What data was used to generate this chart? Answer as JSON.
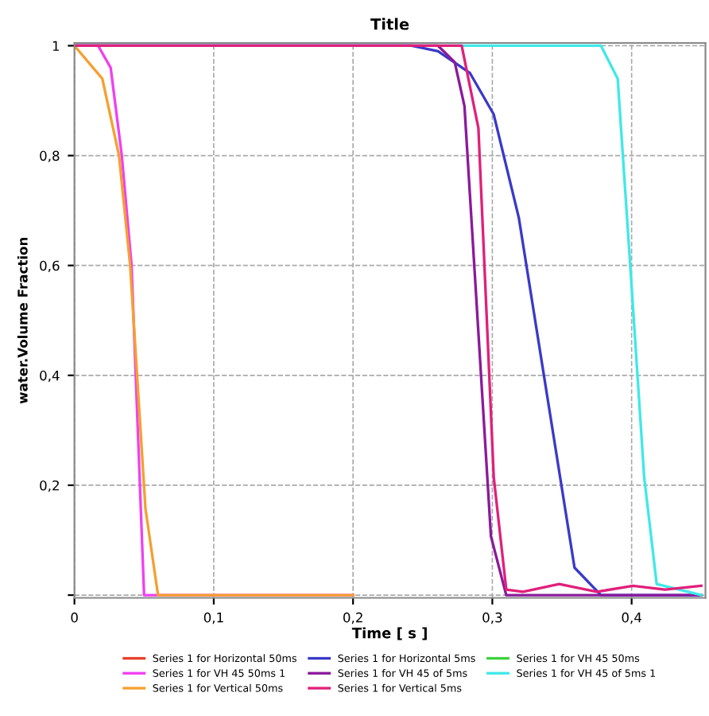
{
  "chart_data": {
    "type": "line",
    "title": "Title",
    "xlabel": "Time [ s ]",
    "ylabel": "water.Volume Fraction",
    "xlim": [
      0,
      0.453
    ],
    "ylim": [
      -0.005,
      1.005
    ],
    "xticks": [
      0,
      {
        "value": 0.1,
        "label": "0,1"
      },
      {
        "value": 0.2,
        "label": "0,2"
      },
      {
        "value": 0.3,
        "label": "0,3"
      },
      {
        "value": 0.4,
        "label": "0,4"
      }
    ],
    "yticks": [
      {
        "value": 0,
        "label": null
      },
      {
        "value": 0.2,
        "label": "0,2"
      },
      {
        "value": 0.4,
        "label": "0,4"
      },
      {
        "value": 0.6,
        "label": "0,6"
      },
      {
        "value": 0.8,
        "label": "0,8"
      },
      1
    ],
    "grid": true,
    "legend": "bottom",
    "marker": "none",
    "line_style": "solid",
    "series": [
      {
        "name": "Series 1 for Horizontal 50ms",
        "color": "#e8402a"
      },
      {
        "name": "Series 1 for Horizontal 5ms",
        "color": "#3a3ac8",
        "x": [
          0,
          0.242,
          0.261,
          0.284,
          0.301,
          0.319,
          0.359,
          0.378,
          0.45
        ],
        "values": [
          1,
          1,
          0.99,
          0.95,
          0.875,
          0.687,
          0.05,
          0,
          0
        ]
      },
      {
        "name": "Series 1 for VH 45 50ms",
        "color": "#3dd13d"
      },
      {
        "name": "Series 1 for VH 45 50ms 1",
        "color": "#f040f0",
        "x": [
          0,
          0.017,
          0.026,
          0.034,
          0.041,
          0.05,
          0.2
        ],
        "values": [
          1,
          1,
          0.96,
          0.8,
          0.6,
          0,
          0
        ]
      },
      {
        "name": "Series 1 for VH 45 of 5ms",
        "color": "#8b1a9b",
        "x": [
          0,
          0.261,
          0.273,
          0.28,
          0.299,
          0.31,
          0.45
        ],
        "values": [
          1,
          1,
          0.97,
          0.89,
          0.107,
          0,
          0
        ]
      },
      {
        "name": "Series 1 for VH 45 of 5ms 1",
        "color": "#40e8e8",
        "x": [
          0,
          0.378,
          0.39,
          0.399,
          0.409,
          0.418,
          0.45
        ],
        "values": [
          1,
          1,
          0.94,
          0.6,
          0.215,
          0.02,
          0
        ]
      },
      {
        "name": "Series 1 for Vertical 50ms",
        "color": "#f5a030",
        "x": [
          0,
          0.02,
          0.032,
          0.04,
          0.051,
          0.06,
          0.2
        ],
        "values": [
          1,
          0.94,
          0.8,
          0.6,
          0.157,
          0,
          0
        ]
      },
      {
        "name": "Series 1 for Vertical 5ms",
        "color": "#e0207a",
        "x": [
          0,
          0.278,
          0.29,
          0.301,
          0.31,
          0.322,
          0.348,
          0.375,
          0.401,
          0.424,
          0.45
        ],
        "values": [
          1,
          1,
          0.85,
          0.215,
          0.01,
          0.006,
          0.02,
          0.006,
          0.017,
          0.01,
          0.017
        ]
      }
    ]
  }
}
